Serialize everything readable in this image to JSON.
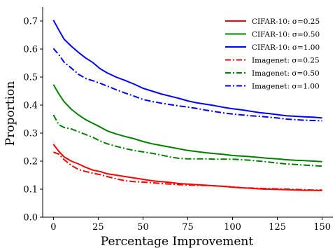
{
  "chart_data": {
    "type": "line",
    "title": "",
    "xlabel": "Percentage Improvement",
    "ylabel": "Proportion",
    "xlim": [
      -6,
      156
    ],
    "ylim": [
      0.0,
      0.75
    ],
    "xticks": [
      0,
      25,
      50,
      75,
      100,
      125,
      150
    ],
    "yticks": [
      0.0,
      0.1,
      0.2,
      0.3,
      0.4,
      0.5,
      0.6,
      0.7
    ],
    "ytick_labels": [
      "0.0",
      "0.1",
      "0.2",
      "0.3",
      "0.4",
      "0.5",
      "0.6",
      "0.7"
    ],
    "grid": false,
    "legend_position": "top-right",
    "x": [
      0,
      3,
      6,
      10,
      14,
      18,
      22,
      26,
      30,
      35,
      40,
      45,
      50,
      55,
      60,
      65,
      70,
      75,
      80,
      85,
      90,
      95,
      100,
      105,
      110,
      115,
      120,
      125,
      130,
      135,
      140,
      145,
      150
    ],
    "series": [
      {
        "name": "CIFAR-10: σ=0.25",
        "color": "#ff0000",
        "dash": "solid",
        "values": [
          0.26,
          0.235,
          0.215,
          0.2,
          0.19,
          0.178,
          0.168,
          0.163,
          0.155,
          0.15,
          0.145,
          0.14,
          0.135,
          0.13,
          0.127,
          0.124,
          0.12,
          0.118,
          0.116,
          0.114,
          0.112,
          0.11,
          0.107,
          0.105,
          0.103,
          0.101,
          0.1,
          0.099,
          0.098,
          0.097,
          0.096,
          0.096,
          0.095
        ]
      },
      {
        "name": "CIFAR-10: σ=0.50",
        "color": "#008000",
        "dash": "solid",
        "values": [
          0.473,
          0.44,
          0.412,
          0.385,
          0.365,
          0.348,
          0.335,
          0.322,
          0.308,
          0.297,
          0.288,
          0.28,
          0.27,
          0.262,
          0.256,
          0.25,
          0.244,
          0.238,
          0.234,
          0.23,
          0.227,
          0.224,
          0.22,
          0.218,
          0.216,
          0.213,
          0.21,
          0.208,
          0.205,
          0.203,
          0.202,
          0.2,
          0.198
        ]
      },
      {
        "name": "CIFAR-10: σ=1.00",
        "color": "#0000ff",
        "dash": "solid",
        "values": [
          0.703,
          0.668,
          0.635,
          0.61,
          0.588,
          0.568,
          0.552,
          0.53,
          0.515,
          0.5,
          0.488,
          0.475,
          0.46,
          0.45,
          0.44,
          0.432,
          0.424,
          0.415,
          0.408,
          0.403,
          0.398,
          0.392,
          0.387,
          0.383,
          0.378,
          0.373,
          0.37,
          0.366,
          0.362,
          0.36,
          0.358,
          0.357,
          0.354
        ]
      },
      {
        "name": "Imagenet: σ=0.25",
        "color": "#ff0000",
        "dash": "dashdot",
        "values": [
          0.232,
          0.225,
          0.205,
          0.185,
          0.17,
          0.163,
          0.157,
          0.152,
          0.145,
          0.137,
          0.13,
          0.127,
          0.125,
          0.123,
          0.12,
          0.118,
          0.116,
          0.115,
          0.114,
          0.113,
          0.112,
          0.11,
          0.108,
          0.105,
          0.104,
          0.103,
          0.102,
          0.101,
          0.1,
          0.099,
          0.098,
          0.097,
          0.097
        ]
      },
      {
        "name": "Imagenet: σ=0.50",
        "color": "#008000",
        "dash": "dashdot",
        "values": [
          0.365,
          0.33,
          0.32,
          0.315,
          0.305,
          0.295,
          0.285,
          0.272,
          0.262,
          0.253,
          0.245,
          0.238,
          0.233,
          0.228,
          0.222,
          0.215,
          0.21,
          0.208,
          0.208,
          0.208,
          0.207,
          0.207,
          0.207,
          0.205,
          0.203,
          0.2,
          0.197,
          0.193,
          0.19,
          0.188,
          0.186,
          0.184,
          0.182
        ]
      },
      {
        "name": "Imagenet: σ=1.00",
        "color": "#0000ff",
        "dash": "dashdot",
        "values": [
          0.602,
          0.58,
          0.553,
          0.532,
          0.51,
          0.495,
          0.487,
          0.478,
          0.468,
          0.455,
          0.443,
          0.432,
          0.42,
          0.413,
          0.407,
          0.402,
          0.397,
          0.393,
          0.388,
          0.382,
          0.377,
          0.372,
          0.368,
          0.365,
          0.362,
          0.36,
          0.357,
          0.354,
          0.35,
          0.348,
          0.346,
          0.345,
          0.344
        ]
      }
    ]
  }
}
